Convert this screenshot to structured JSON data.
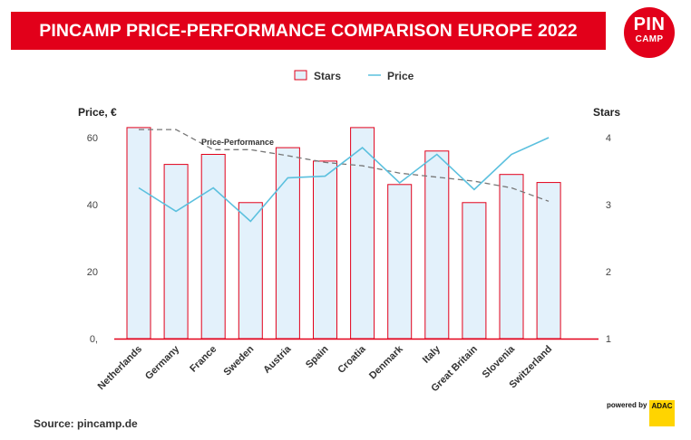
{
  "header": {
    "title": "PINCAMP PRICE-PERFORMANCE COMPARISON EUROPE 2022"
  },
  "logo": {
    "line1": "PIN",
    "line2": "CAMP",
    "color": "#e2001a"
  },
  "footer": {
    "source": "Source: pincamp.de",
    "powered_by": "powered by",
    "partner": "ADAC"
  },
  "chart_data": {
    "type": "bar",
    "categories": [
      "Netherlands",
      "Germany",
      "France",
      "Sweden",
      "Austria",
      "Spain",
      "Croatia",
      "Denmark",
      "Italy",
      "Great Britain",
      "Slovenia",
      "Switzerland"
    ],
    "series": [
      {
        "name": "Stars",
        "type": "bar",
        "axis": "right",
        "values": [
          4.15,
          3.6,
          3.75,
          3.03,
          3.85,
          3.65,
          4.15,
          3.3,
          3.8,
          3.03,
          3.45,
          3.33
        ],
        "fill": "#e3f1fb",
        "stroke": "#e2001a"
      },
      {
        "name": "Price",
        "type": "line",
        "axis": "left",
        "values": [
          45,
          38,
          45,
          35,
          48,
          48.5,
          57,
          46.5,
          55,
          44.5,
          55,
          60
        ],
        "color": "#5bc0de"
      },
      {
        "name": "Price-Performance",
        "type": "trend",
        "style": "dashed",
        "axis": "right",
        "values": [
          4.12,
          4.12,
          3.82,
          3.82,
          3.73,
          3.63,
          3.58,
          3.47,
          3.41,
          3.35,
          3.25,
          3.05
        ],
        "color": "#777777"
      }
    ],
    "left_axis": {
      "label": "Price, €",
      "ticks": [
        "0,",
        "20",
        "40",
        "60"
      ],
      "ylim": [
        0,
        60
      ]
    },
    "right_axis": {
      "label": "Stars",
      "ticks": [
        "1",
        "2",
        "3",
        "4"
      ],
      "ylim": [
        1,
        4
      ]
    },
    "legend": {
      "position": "top-center",
      "items": [
        "Stars",
        "Price"
      ]
    },
    "annotation": "Price-Performance",
    "grid": false
  }
}
